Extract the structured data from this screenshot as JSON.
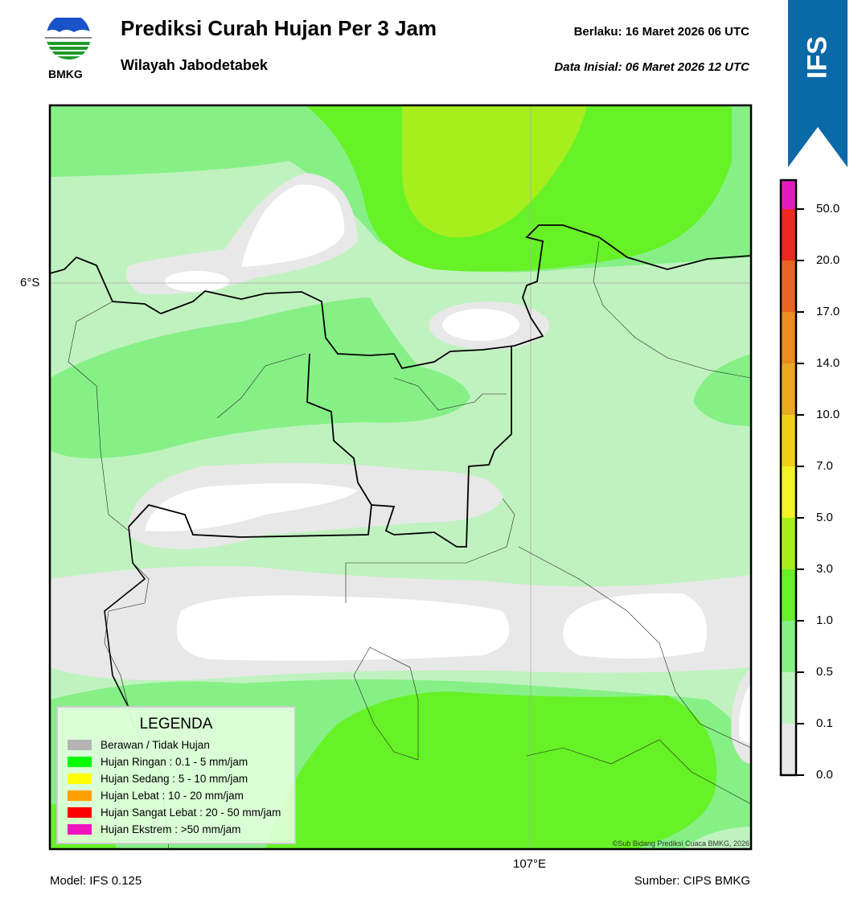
{
  "header": {
    "title": "Prediksi Curah Hujan Per 3 Jam",
    "subtitle": "Wilayah Jabodetabek",
    "valid_label": "Berlaku:  16 Maret 2026 06 UTC",
    "init_label": "Data Inisial:  06 Maret 2026 12 UTC",
    "logo_text": "BMKG"
  },
  "badge": {
    "text": "IFS",
    "color": "#0a6aa8"
  },
  "map": {
    "lat_label": "6°S",
    "lon_label": "107°E",
    "copyright": "©Sub Bidang Prediksi Cuaca BMKG, 2026",
    "colors": {
      "none": "#e8e8e8",
      "clear": "#ffffff",
      "c01": "#c0f2c0",
      "c05": "#86f086",
      "c1": "#66f226",
      "c3": "#a6ee1e"
    }
  },
  "legend": {
    "title": "LEGENDA",
    "items": [
      {
        "label": "Berawan / Tidak Hujan",
        "color": "#b4b4b4"
      },
      {
        "label": "Hujan Ringan : 0.1 - 5 mm/jam",
        "color": "#00ff00"
      },
      {
        "label": "Hujan Sedang : 5 - 10 mm/jam",
        "color": "#ffff00"
      },
      {
        "label": "Hujan Lebat : 10 - 20 mm/jam",
        "color": "#ffa000"
      },
      {
        "label": "Hujan Sangat Lebat : 20 - 50 mm/jam",
        "color": "#ff0000"
      },
      {
        "label": "Hujan Ekstrem : >50 mm/jam",
        "color": "#f014c0"
      }
    ]
  },
  "colorbar": {
    "ticks": [
      "0.0",
      "0.1",
      "0.5",
      "1.0",
      "3.0",
      "5.0",
      "7.0",
      "10.0",
      "14.0",
      "17.0",
      "20.0",
      "50.0"
    ],
    "colors": [
      "#e8e8e8",
      "#c0f2c0",
      "#86f086",
      "#66f226",
      "#a6ee1e",
      "#f2f224",
      "#f0d018",
      "#eca820",
      "#ec8c20",
      "#e86420",
      "#ec2820",
      "#e41cc0"
    ]
  },
  "footer": {
    "model": "Model: IFS 0.125",
    "source": "Sumber: CIPS BMKG"
  }
}
